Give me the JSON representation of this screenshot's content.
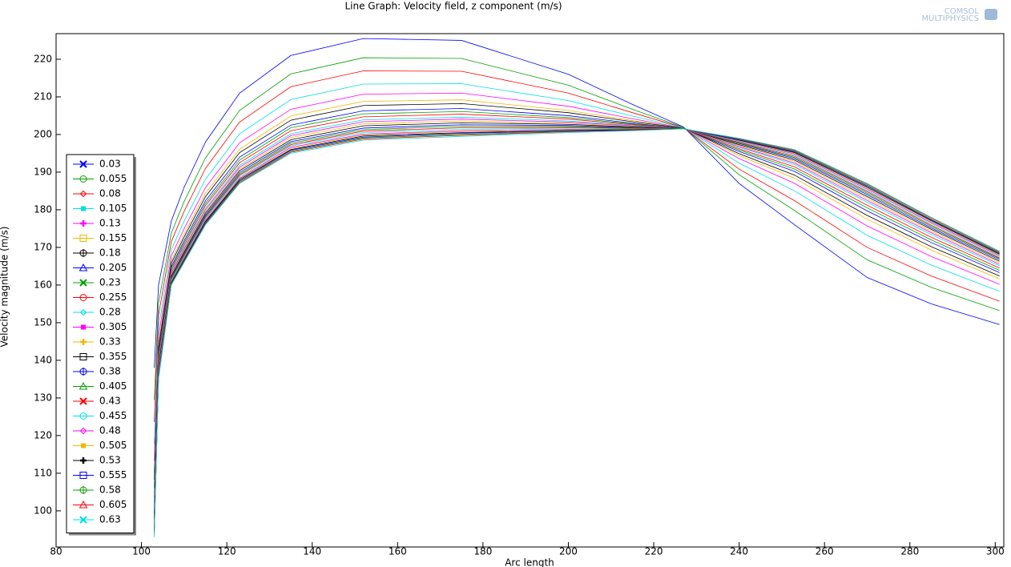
{
  "chart_data": {
    "type": "line",
    "title": "Line Graph: Velocity field, z component (m/s)",
    "watermark": [
      "COMSOL",
      "MULTIPHYSICS"
    ],
    "x_label": "Arc length",
    "y_label": "Velocity magnitude (m/s)",
    "xlim": [
      80,
      302
    ],
    "ylim": [
      90.4,
      226.8
    ],
    "xticks": [
      80,
      100,
      120,
      140,
      160,
      180,
      200,
      220,
      240,
      260,
      280,
      300
    ],
    "yticks": [
      100,
      110,
      120,
      130,
      140,
      150,
      160,
      170,
      180,
      190,
      200,
      210,
      220
    ],
    "grid": false,
    "legend": "left",
    "x": [
      103,
      104,
      107,
      110,
      115,
      123,
      135,
      152,
      175,
      200,
      215,
      227,
      240,
      253,
      270,
      285,
      301
    ],
    "series": [
      {
        "name": "0.03",
        "color": "#0000ff",
        "values": [
          138,
          160,
          177,
          186,
          198,
          211,
          221,
          225.5,
          225,
          216,
          208,
          202,
          187,
          176,
          162,
          155,
          149.5
        ]
      },
      {
        "name": "0.055",
        "color": "#00a000",
        "values": [
          129.5,
          155.3,
          173.8,
          182.2,
          193.8,
          206.4,
          216.1,
          220.4,
          220.2,
          213.1,
          206.7,
          201.9,
          189.3,
          179.8,
          166.7,
          159.4,
          153.2
        ]
      },
      {
        "name": "0.08",
        "color": "#ff0000",
        "values": [
          123.6,
          152,
          171.6,
          179.6,
          191,
          203.3,
          212.7,
          216.9,
          216.8,
          211,
          205.8,
          201.8,
          190.8,
          182.4,
          170,
          162.4,
          155.7
        ]
      },
      {
        "name": "0.105",
        "color": "#00e0e0",
        "values": [
          117.8,
          148.8,
          169.4,
          177,
          188.1,
          200.2,
          209.3,
          213.4,
          213.5,
          209,
          204.9,
          201.8,
          192.4,
          185,
          173.2,
          165.3,
          158.3
        ]
      },
      {
        "name": "0.13",
        "color": "#ff00ff",
        "values": [
          113.3,
          146.3,
          167.7,
          175,
          185.9,
          197.8,
          206.7,
          210.7,
          211,
          207.5,
          204.2,
          201.7,
          193.6,
          187,
          175.7,
          167.6,
          160.2
        ]
      },
      {
        "name": "0.155",
        "color": "#f0b800",
        "values": [
          110.1,
          144.5,
          166.5,
          173.6,
          184.4,
          196.1,
          204.9,
          208.8,
          209.2,
          206.4,
          203.7,
          201.7,
          194.4,
          188.4,
          177.5,
          169.3,
          161.6
        ]
      },
      {
        "name": "0.18",
        "color": "#000000",
        "values": [
          108.3,
          143.5,
          165.8,
          172.8,
          183.5,
          195.2,
          203.8,
          207.7,
          208.2,
          205.8,
          203.4,
          201.7,
          194.9,
          189.2,
          178.5,
          170.2,
          162.4
        ]
      },
      {
        "name": "0.205",
        "color": "#0000ff",
        "values": [
          106.1,
          142.3,
          164.9,
          171.8,
          182.4,
          194,
          202.5,
          206.3,
          206.9,
          205,
          203,
          201.6,
          195.5,
          190.2,
          179.7,
          171.3,
          163.3
        ]
      },
      {
        "name": "0.23",
        "color": "#00a000",
        "values": [
          104.7,
          141.5,
          164.4,
          171.2,
          181.7,
          193.2,
          201.8,
          205.5,
          206.1,
          204.5,
          202.8,
          201.6,
          195.9,
          190.8,
          180.5,
          172,
          163.9
        ]
      },
      {
        "name": "0.255",
        "color": "#ff0000",
        "values": [
          103.4,
          140.8,
          163.9,
          170.6,
          181.1,
          192.5,
          201,
          204.7,
          205.4,
          204.1,
          202.6,
          201.6,
          196.2,
          191.4,
          181.2,
          172.7,
          164.5
        ]
      },
      {
        "name": "0.28",
        "color": "#00e0e0",
        "values": [
          102,
          140,
          163.4,
          170,
          180.4,
          191.8,
          200.2,
          203.9,
          204.6,
          203.6,
          202.4,
          201.6,
          196.6,
          192,
          182,
          173.4,
          165.1
        ]
      },
      {
        "name": "0.305",
        "color": "#ff00ff",
        "values": [
          101.1,
          139.5,
          163.1,
          169.6,
          180,
          191.3,
          199.7,
          203.4,
          204.1,
          203.3,
          202.3,
          201.6,
          196.8,
          192.4,
          182.5,
          173.9,
          165.5
        ]
      },
      {
        "name": "0.33",
        "color": "#f0b800",
        "values": [
          100.2,
          139,
          162.7,
          169.2,
          179.5,
          190.8,
          199.2,
          202.8,
          203.6,
          203,
          202.1,
          201.6,
          197.1,
          192.8,
          183,
          174.3,
          165.9
        ]
      },
      {
        "name": "0.355",
        "color": "#000000",
        "values": [
          99.3,
          138.5,
          162.4,
          168.8,
          179.1,
          190.4,
          198.6,
          202.3,
          203.1,
          202.7,
          202,
          201.6,
          197.3,
          193.2,
          183.5,
          174.8,
          166.3
        ]
      },
      {
        "name": "0.38",
        "color": "#0000ff",
        "values": [
          98.4,
          138,
          162,
          168.4,
          178.6,
          189.9,
          198.1,
          201.7,
          202.6,
          202.4,
          201.8,
          201.6,
          197.6,
          193.6,
          184,
          175.2,
          166.7
        ]
      },
      {
        "name": "0.405",
        "color": "#00a000",
        "values": [
          97.7,
          137.6,
          161.8,
          168.1,
          178.3,
          189.5,
          197.7,
          201.3,
          202.2,
          202.1,
          201.7,
          201.6,
          197.7,
          193.9,
          184.4,
          175.6,
          167
        ]
      },
      {
        "name": "0.43",
        "color": "#ff0000",
        "values": [
          97.1,
          137.3,
          161.5,
          167.8,
          178,
          189.2,
          197.3,
          200.9,
          201.8,
          201.9,
          201.6,
          201.5,
          197.9,
          194.2,
          184.8,
          175.9,
          167.2
        ]
      },
      {
        "name": "0.455",
        "color": "#00e0e0",
        "values": [
          96.4,
          136.9,
          161.3,
          167.5,
          177.7,
          188.8,
          197,
          200.5,
          201.4,
          201.7,
          201.5,
          201.5,
          198.1,
          194.5,
          185.1,
          176.3,
          167.5
        ]
      },
      {
        "name": "0.48",
        "color": "#ff00ff",
        "values": [
          95.7,
          136.5,
          161,
          167.2,
          177.3,
          188.4,
          196.6,
          200.1,
          201,
          201.4,
          201.4,
          201.5,
          198.3,
          194.8,
          185.5,
          176.6,
          167.8
        ]
      },
      {
        "name": "0.505",
        "color": "#f0b800",
        "values": [
          95.3,
          136.3,
          160.9,
          167,
          177.1,
          188.2,
          196.3,
          199.9,
          200.8,
          201.3,
          201.4,
          201.5,
          198.4,
          195,
          185.8,
          176.9,
          168
        ]
      },
      {
        "name": "0.53",
        "color": "#000000",
        "values": [
          94.8,
          136,
          160.7,
          166.8,
          176.9,
          188,
          196,
          199.6,
          200.5,
          201.1,
          201.3,
          201.5,
          198.5,
          195.2,
          186,
          177.1,
          168.2
        ]
      },
      {
        "name": "0.555",
        "color": "#0000ff",
        "values": [
          94.4,
          135.8,
          160.5,
          166.6,
          176.7,
          187.7,
          195.8,
          199.3,
          200.3,
          201,
          201.2,
          201.5,
          198.6,
          195.4,
          186.3,
          177.3,
          168.4
        ]
      },
      {
        "name": "0.58",
        "color": "#00a000",
        "values": [
          93.9,
          135.5,
          160.3,
          166.4,
          176.4,
          187.5,
          195.5,
          199.1,
          200,
          200.8,
          201.1,
          201.5,
          198.8,
          195.6,
          186.5,
          177.5,
          168.6
        ]
      },
      {
        "name": "0.605",
        "color": "#ff0000",
        "values": [
          93.5,
          135.3,
          160.2,
          166.2,
          176.2,
          187.2,
          195.3,
          198.8,
          199.8,
          200.7,
          201.1,
          201.5,
          198.9,
          195.8,
          186.8,
          177.8,
          168.8
        ]
      },
      {
        "name": "0.63",
        "color": "#00e0e0",
        "values": [
          93,
          135,
          160,
          166,
          176,
          187,
          195,
          198.5,
          199.5,
          200.5,
          201,
          201.5,
          199,
          196,
          187,
          178,
          169
        ]
      }
    ]
  }
}
